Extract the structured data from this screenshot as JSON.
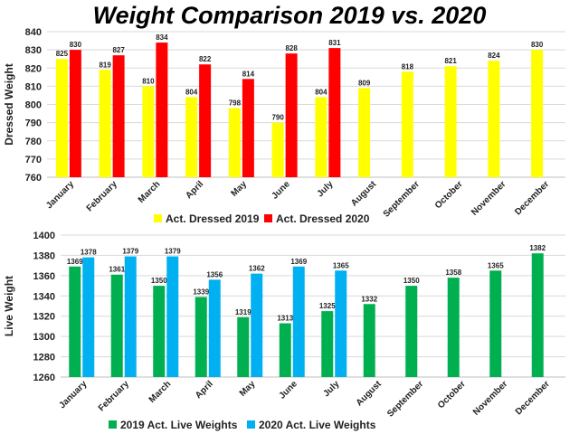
{
  "title": "Weight Comparison 2019 vs. 2020",
  "chart_data": [
    {
      "type": "bar",
      "categories": [
        "January",
        "February",
        "March",
        "April",
        "May",
        "June",
        "July",
        "August",
        "September",
        "October",
        "November",
        "December"
      ],
      "series": [
        {
          "name": "Act. Dressed 2019",
          "color": "#ffff00",
          "values": [
            825,
            819,
            810,
            804,
            798,
            790,
            804,
            809,
            818,
            821,
            824,
            830
          ]
        },
        {
          "name": "Act. Dressed 2020",
          "color": "#ff0000",
          "values": [
            830,
            827,
            834,
            822,
            814,
            828,
            831,
            null,
            null,
            null,
            null,
            null
          ]
        }
      ],
      "ylabel": "Dressed Weight",
      "ylim": [
        760,
        840
      ],
      "yticks": [
        760,
        770,
        780,
        790,
        800,
        810,
        820,
        830,
        840
      ],
      "grid": true,
      "legend": "bottom"
    },
    {
      "type": "bar",
      "categories": [
        "January",
        "February",
        "March",
        "April",
        "May",
        "June",
        "July",
        "August",
        "September",
        "October",
        "November",
        "December"
      ],
      "series": [
        {
          "name": "2019 Act. Live Weights",
          "color": "#00b050",
          "values": [
            1369,
            1361,
            1350,
            1339,
            1319,
            1313,
            1325,
            1332,
            1350,
            1358,
            1365,
            1382
          ]
        },
        {
          "name": "2020 Act. Live Weights",
          "color": "#00b0f0",
          "values": [
            1378,
            1379,
            1379,
            1356,
            1362,
            1369,
            1365,
            null,
            null,
            null,
            null,
            null
          ]
        }
      ],
      "ylabel": "Live Weight",
      "ylim": [
        1260,
        1400
      ],
      "yticks": [
        1260,
        1280,
        1300,
        1320,
        1340,
        1360,
        1380,
        1400
      ],
      "grid": true,
      "legend": "bottom"
    }
  ]
}
